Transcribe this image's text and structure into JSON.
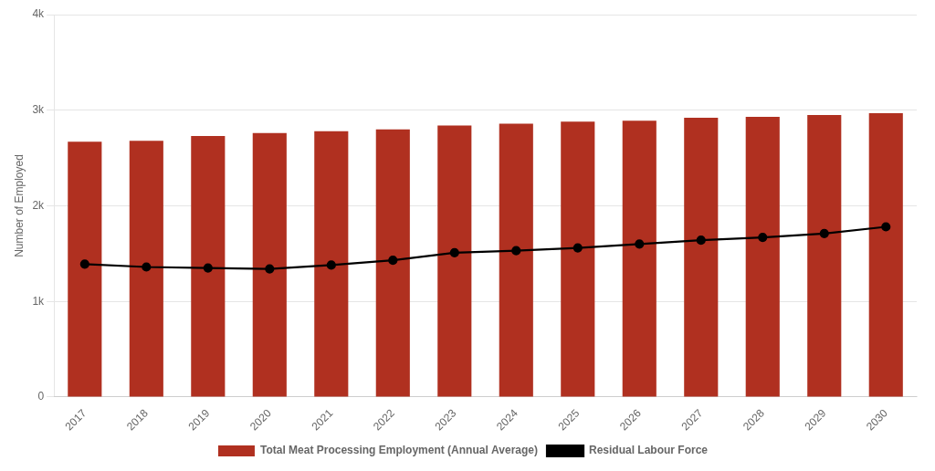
{
  "chart_data": {
    "type": "bar",
    "ylabel": "Number of Employed",
    "categories": [
      "2017",
      "2018",
      "2019",
      "2020",
      "2021",
      "2022",
      "2023",
      "2024",
      "2025",
      "2026",
      "2027",
      "2028",
      "2029",
      "2030"
    ],
    "series": [
      {
        "name": "Total Meat Processing Employment (Annual Average)",
        "type": "bar",
        "color": "#B03020",
        "values": [
          2670,
          2680,
          2730,
          2760,
          2780,
          2800,
          2840,
          2860,
          2880,
          2890,
          2920,
          2930,
          2950,
          2970
        ]
      },
      {
        "name": "Residual Labour Force",
        "type": "line",
        "color": "#000000",
        "marker": "circle",
        "values": [
          1390,
          1360,
          1350,
          1340,
          1380,
          1430,
          1510,
          1530,
          1560,
          1600,
          1640,
          1670,
          1710,
          1780
        ]
      }
    ],
    "ylim": [
      0,
      4000
    ],
    "yticks": [
      0,
      {
        "value": 1000,
        "label": "1k"
      },
      {
        "value": 2000,
        "label": "2k"
      },
      {
        "value": 3000,
        "label": "3k"
      },
      {
        "value": 4000,
        "label": "4k"
      }
    ],
    "grid": "y",
    "legend": "bottom"
  }
}
